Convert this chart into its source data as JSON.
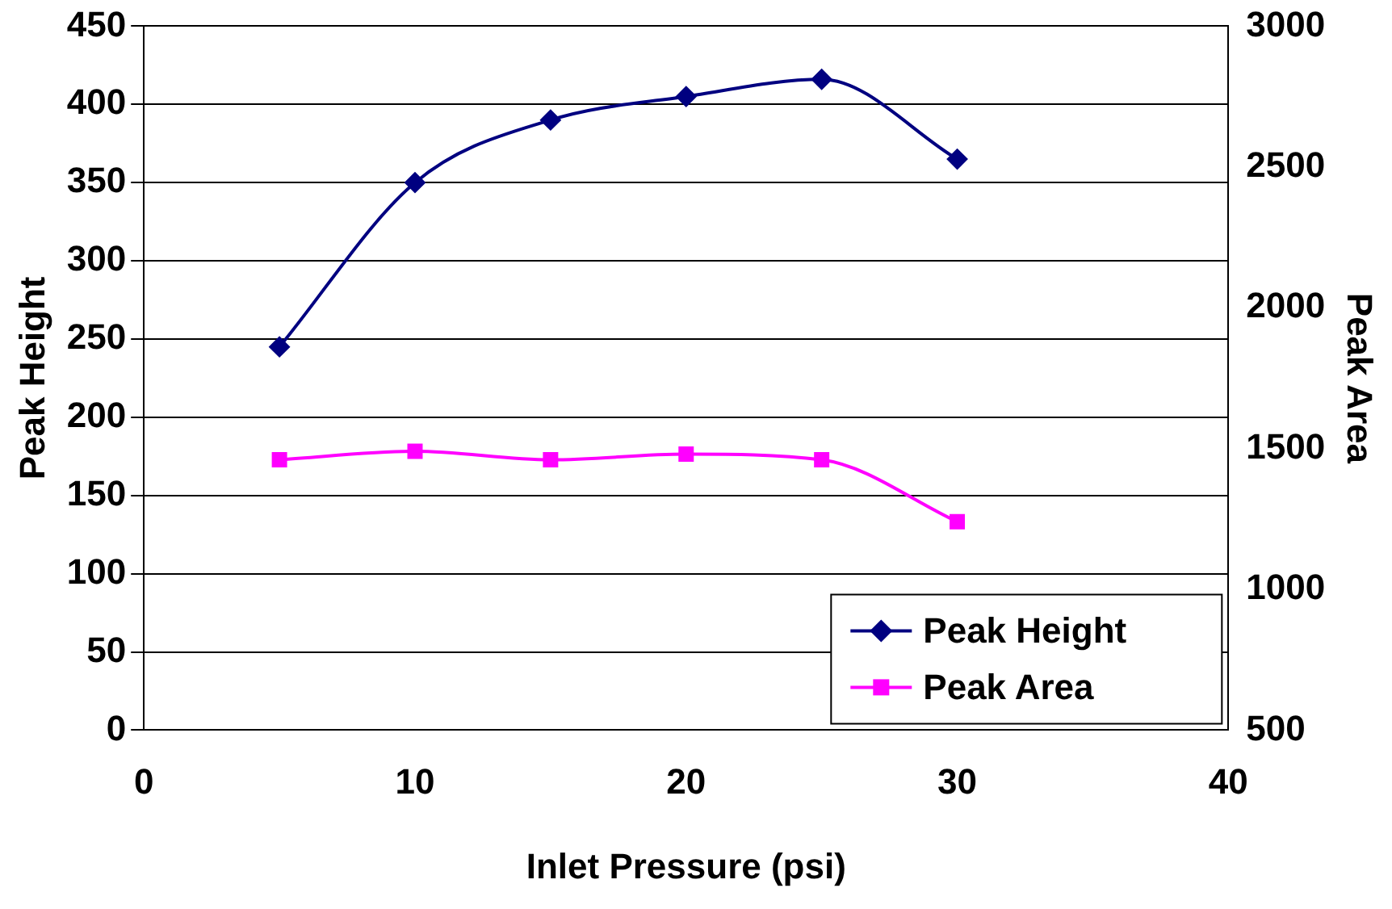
{
  "chart_data": {
    "type": "line",
    "xlabel": "Inlet Pressure (psi)",
    "ylabel": "Peak Height",
    "y2label": "Peak Area",
    "x": [
      5,
      10,
      15,
      20,
      25,
      30
    ],
    "series": [
      {
        "name": "Peak Height",
        "color": "#000080",
        "values": [
          245,
          350,
          390,
          405,
          416,
          365
        ],
        "marker": "diamond"
      },
      {
        "name": "Peak Area",
        "color": "#ff00ff",
        "values": [
          1460,
          1490,
          1460,
          1480,
          1460,
          1240
        ],
        "axis": "y2",
        "marker": "square"
      }
    ],
    "xlim": [
      0,
      40
    ],
    "xticks": [
      0,
      10,
      20,
      30,
      40
    ],
    "ylim": [
      0,
      450
    ],
    "yticks": [
      0,
      50,
      100,
      150,
      200,
      250,
      300,
      350,
      400,
      450
    ],
    "y2lim": [
      500,
      3000
    ],
    "y2ticks": [
      500,
      1000,
      1500,
      2000,
      2500,
      3000
    ],
    "grid": "y",
    "legend": "bottom right"
  }
}
